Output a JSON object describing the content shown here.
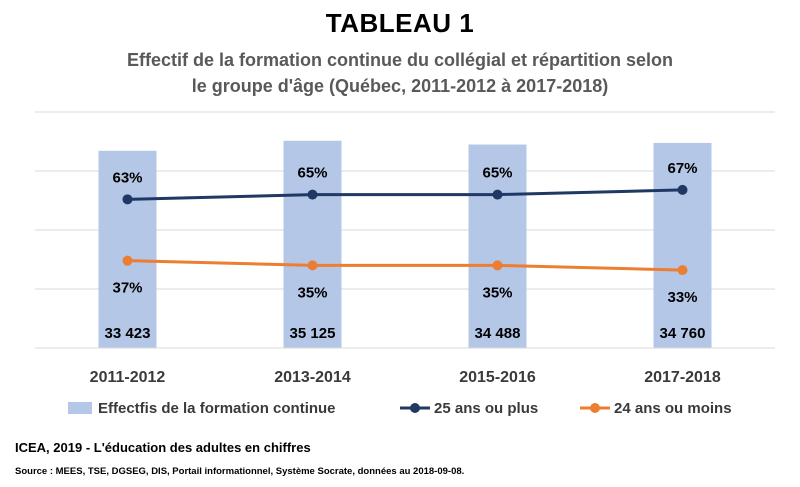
{
  "title": "TABLEAU 1",
  "subtitle_line1": "Effectif de la formation continue du collégial et répartition selon",
  "subtitle_line2": "le groupe d'âge (Québec, 2011-2012 à 2017-2018)",
  "source_line1": "ICEA, 2019 - L'éducation des adultes en chiffres",
  "source_line2": "Source : MEES, TSE, DGSEG, DIS, Portail informationnel, Système Socrate, données au 2018-09-08.",
  "chart_data": {
    "type": "bar",
    "categories": [
      "2011-2012",
      "2013-2014",
      "2015-2016",
      "2017-2018"
    ],
    "series": [
      {
        "name": "Effectfis de la formation continue",
        "type": "bar",
        "axis": "primary",
        "color": "#b4c7e7",
        "values": [
          33423,
          35125,
          34488,
          34760
        ],
        "labels": [
          "33 423",
          "35 125",
          "34 488",
          "34 760"
        ]
      },
      {
        "name": "25 ans ou plus",
        "type": "line",
        "axis": "secondary",
        "color": "#203864",
        "values": [
          63,
          65,
          65,
          67
        ],
        "labels": [
          "63%",
          "65%",
          "65%",
          "67%"
        ]
      },
      {
        "name": "24 ans ou moins",
        "type": "line",
        "axis": "secondary",
        "color": "#ed7d31",
        "values": [
          37,
          35,
          35,
          33
        ],
        "labels": [
          "37%",
          "35%",
          "35%",
          "33%"
        ]
      }
    ],
    "primary_ylim": [
      0,
      40000
    ],
    "secondary_ylim": [
      0,
      100
    ],
    "grid": true,
    "legend": "bottom"
  }
}
